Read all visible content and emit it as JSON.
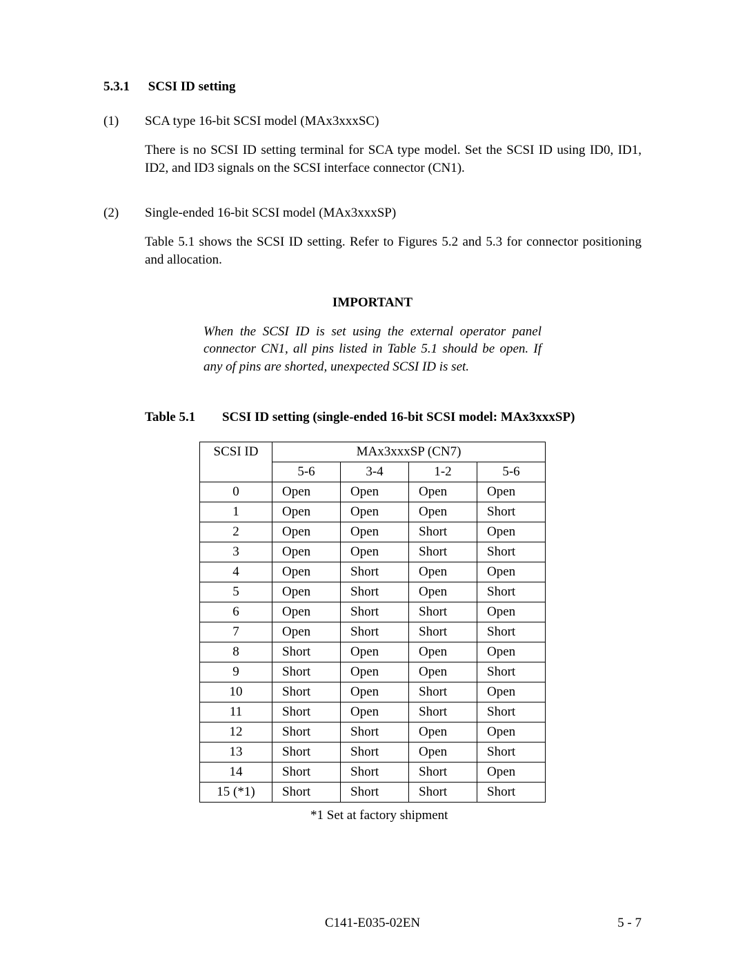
{
  "section": {
    "number": "5.3.1",
    "title": "SCSI ID setting"
  },
  "items": [
    {
      "num": "(1)",
      "heading": "SCA type 16-bit SCSI model (MAx3xxxSC)",
      "body": "There is no SCSI ID setting terminal for SCA type model. Set the SCSI ID using ID0, ID1, ID2, and ID3 signals on the SCSI interface connector (CN1)."
    },
    {
      "num": "(2)",
      "heading": "Single-ended 16-bit SCSI model (MAx3xxxSP)",
      "body": "Table 5.1 shows the SCSI ID setting. Refer to Figures 5.2 and 5.3 for connector positioning and allocation."
    }
  ],
  "important": {
    "title": "IMPORTANT",
    "text": "When the SCSI ID is set using the external operator panel connector CN1, all pins listed in Table 5.1 should be open.  If any of pins are shorted, unexpected SCSI ID is set."
  },
  "table": {
    "caption_num": "Table 5.1",
    "caption_text": "SCSI ID setting (single-ended 16-bit SCSI model: MAx3xxxSP)",
    "header_group": "MAx3xxxSP (CN7)",
    "header_id": "SCSI ID",
    "columns": [
      "5-6",
      "3-4",
      "1-2",
      "5-6"
    ],
    "rows": [
      {
        "id": "0",
        "v": [
          "Open",
          "Open",
          "Open",
          "Open"
        ]
      },
      {
        "id": "1",
        "v": [
          "Open",
          "Open",
          "Open",
          "Short"
        ]
      },
      {
        "id": "2",
        "v": [
          "Open",
          "Open",
          "Short",
          "Open"
        ]
      },
      {
        "id": "3",
        "v": [
          "Open",
          "Open",
          "Short",
          "Short"
        ]
      },
      {
        "id": "4",
        "v": [
          "Open",
          "Short",
          "Open",
          "Open"
        ]
      },
      {
        "id": "5",
        "v": [
          "Open",
          "Short",
          "Open",
          "Short"
        ]
      },
      {
        "id": "6",
        "v": [
          "Open",
          "Short",
          "Short",
          "Open"
        ]
      },
      {
        "id": "7",
        "v": [
          "Open",
          "Short",
          "Short",
          "Short"
        ]
      },
      {
        "id": "8",
        "v": [
          "Short",
          "Open",
          "Open",
          "Open"
        ]
      },
      {
        "id": "9",
        "v": [
          "Short",
          "Open",
          "Open",
          "Short"
        ]
      },
      {
        "id": "10",
        "v": [
          "Short",
          "Open",
          "Short",
          "Open"
        ]
      },
      {
        "id": "11",
        "v": [
          "Short",
          "Open",
          "Short",
          "Short"
        ]
      },
      {
        "id": "12",
        "v": [
          "Short",
          "Short",
          "Open",
          "Open"
        ]
      },
      {
        "id": "13",
        "v": [
          "Short",
          "Short",
          "Open",
          "Short"
        ]
      },
      {
        "id": "14",
        "v": [
          "Short",
          "Short",
          "Short",
          "Open"
        ]
      },
      {
        "id": "15 (*1)",
        "v": [
          "Short",
          "Short",
          "Short",
          "Short"
        ]
      }
    ],
    "footnote": "*1  Set at factory shipment"
  },
  "footer": {
    "center": "C141-E035-02EN",
    "right": "5 - 7"
  }
}
